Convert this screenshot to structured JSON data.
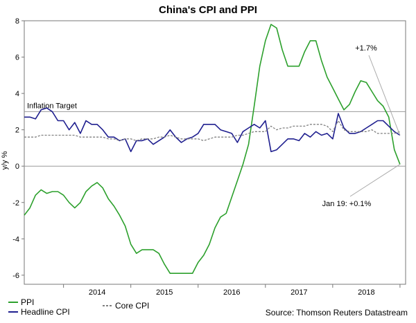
{
  "chart_data": {
    "type": "line",
    "title": "China's CPI and PPI",
    "ylabel": "y/y %",
    "xlabel": "",
    "ylim": [
      -6.5,
      8
    ],
    "yticks": [
      8,
      6,
      4,
      2,
      0,
      -2,
      -4,
      -6
    ],
    "x_tick_labels": [
      "2014",
      "2015",
      "2016",
      "2017",
      "2018"
    ],
    "x_range": [
      "2013-06",
      "2019-02"
    ],
    "grid": false,
    "legend_position": "bottom-left",
    "source": "Source: Thomson Reuters Datastream",
    "reference_lines": [
      {
        "label": "Inflation Target",
        "value": 3
      },
      {
        "label": "",
        "value": 0
      }
    ],
    "annotations": [
      {
        "text": "+1.7%",
        "points_to_series": "Headline CPI",
        "points_to_x": "2019-01",
        "points_to_y": 1.7
      },
      {
        "text": "Jan 19: +0.1%",
        "points_to_series": "PPI",
        "points_to_x": "2019-01",
        "points_to_y": 0.1
      }
    ],
    "x": [
      "2013-06",
      "2013-07",
      "2013-08",
      "2013-09",
      "2013-10",
      "2013-11",
      "2013-12",
      "2014-01",
      "2014-02",
      "2014-03",
      "2014-04",
      "2014-05",
      "2014-06",
      "2014-07",
      "2014-08",
      "2014-09",
      "2014-10",
      "2014-11",
      "2014-12",
      "2015-01",
      "2015-02",
      "2015-03",
      "2015-04",
      "2015-05",
      "2015-06",
      "2015-07",
      "2015-08",
      "2015-09",
      "2015-10",
      "2015-11",
      "2015-12",
      "2016-01",
      "2016-02",
      "2016-03",
      "2016-04",
      "2016-05",
      "2016-06",
      "2016-07",
      "2016-08",
      "2016-09",
      "2016-10",
      "2016-11",
      "2016-12",
      "2017-01",
      "2017-02",
      "2017-03",
      "2017-04",
      "2017-05",
      "2017-06",
      "2017-07",
      "2017-08",
      "2017-09",
      "2017-10",
      "2017-11",
      "2017-12",
      "2018-01",
      "2018-02",
      "2018-03",
      "2018-04",
      "2018-05",
      "2018-06",
      "2018-07",
      "2018-08",
      "2018-09",
      "2018-10",
      "2018-11",
      "2018-12",
      "2019-01"
    ],
    "series": [
      {
        "name": "PPI",
        "color": "#2ca02c",
        "style": "solid",
        "values": [
          -2.7,
          -2.3,
          -1.6,
          -1.3,
          -1.5,
          -1.4,
          -1.4,
          -1.6,
          -2.0,
          -2.3,
          -2.0,
          -1.4,
          -1.1,
          -0.9,
          -1.2,
          -1.8,
          -2.2,
          -2.7,
          -3.3,
          -4.3,
          -4.8,
          -4.6,
          -4.6,
          -4.6,
          -4.8,
          -5.4,
          -5.9,
          -5.9,
          -5.9,
          -5.9,
          -5.9,
          -5.3,
          -4.9,
          -4.3,
          -3.4,
          -2.8,
          -2.6,
          -1.7,
          -0.8,
          0.1,
          1.2,
          3.3,
          5.5,
          6.9,
          7.8,
          7.6,
          6.4,
          5.5,
          5.5,
          5.5,
          6.3,
          6.9,
          6.9,
          5.8,
          4.9,
          4.3,
          3.7,
          3.1,
          3.4,
          4.1,
          4.7,
          4.6,
          4.1,
          3.6,
          3.3,
          2.7,
          0.9,
          0.1
        ]
      },
      {
        "name": "Headline CPI",
        "color": "#1f1f8f",
        "style": "solid",
        "values": [
          2.7,
          2.7,
          2.6,
          3.1,
          3.2,
          3.0,
          2.5,
          2.5,
          2.0,
          2.4,
          1.8,
          2.5,
          2.3,
          2.3,
          2.0,
          1.6,
          1.6,
          1.4,
          1.5,
          0.8,
          1.4,
          1.4,
          1.5,
          1.2,
          1.4,
          1.6,
          2.0,
          1.6,
          1.3,
          1.5,
          1.6,
          1.8,
          2.3,
          2.3,
          2.3,
          2.0,
          1.9,
          1.8,
          1.3,
          1.9,
          2.1,
          2.3,
          2.1,
          2.5,
          0.8,
          0.9,
          1.2,
          1.5,
          1.5,
          1.4,
          1.8,
          1.6,
          1.9,
          1.7,
          1.8,
          1.5,
          2.9,
          2.1,
          1.8,
          1.8,
          1.9,
          2.1,
          2.3,
          2.5,
          2.5,
          2.2,
          1.9,
          1.7
        ]
      },
      {
        "name": "Core CPI",
        "color": "#808080",
        "style": "dashed",
        "values": [
          1.6,
          1.6,
          1.6,
          1.7,
          1.7,
          1.7,
          1.7,
          1.7,
          1.7,
          1.7,
          1.6,
          1.6,
          1.6,
          1.6,
          1.6,
          1.5,
          1.5,
          1.4,
          1.5,
          1.5,
          1.4,
          1.5,
          1.5,
          1.5,
          1.6,
          1.6,
          1.7,
          1.6,
          1.5,
          1.5,
          1.5,
          1.5,
          1.4,
          1.5,
          1.6,
          1.6,
          1.6,
          1.6,
          1.7,
          1.7,
          1.8,
          1.9,
          1.9,
          1.9,
          2.2,
          2.0,
          2.1,
          2.1,
          2.2,
          2.2,
          2.2,
          2.3,
          2.3,
          2.3,
          2.2,
          1.9,
          2.5,
          2.0,
          1.9,
          1.9,
          1.9,
          1.9,
          2.0,
          1.8,
          1.8,
          1.8,
          1.8,
          1.9
        ]
      }
    ]
  }
}
